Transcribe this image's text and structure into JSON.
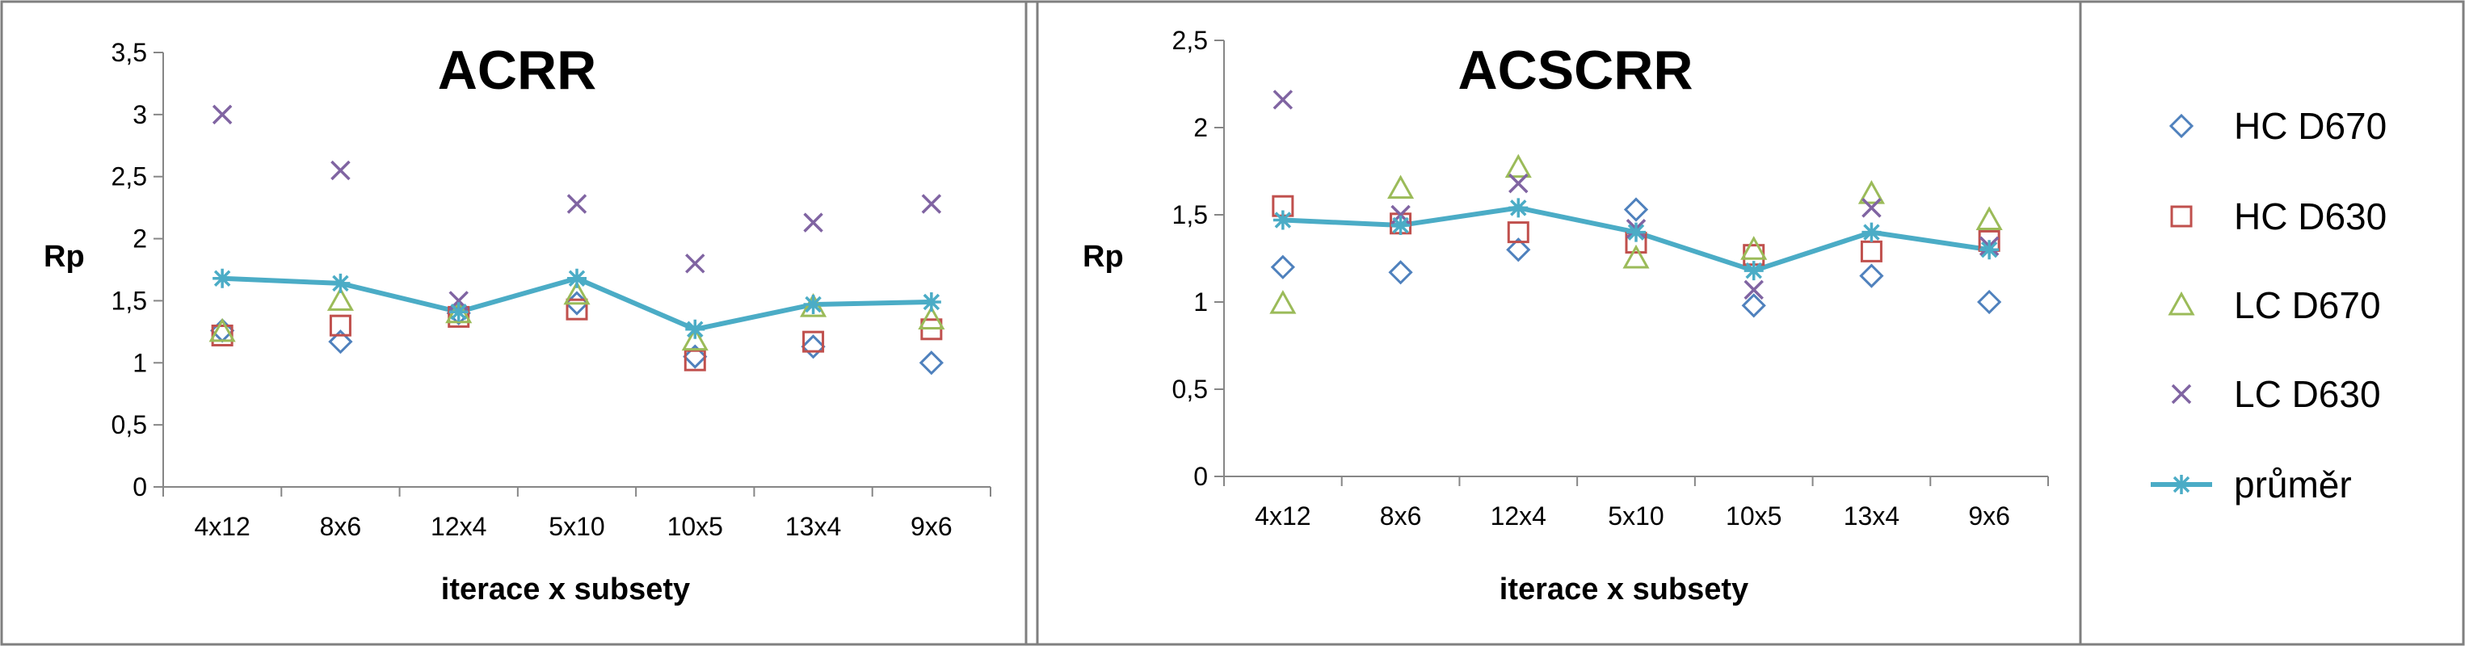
{
  "chart_data": [
    {
      "type": "scatter",
      "title": "ACRR",
      "xlabel": "iterace x subsety",
      "ylabel": "Rp",
      "categories": [
        "4x12",
        "8x6",
        "12x4",
        "5x10",
        "10x5",
        "13x4",
        "9x6"
      ],
      "ylim": [
        0,
        3.5
      ],
      "yticks": [
        "0",
        "0,5",
        "1",
        "1,5",
        "2",
        "2,5",
        "3",
        "3,5"
      ],
      "grid": false,
      "series": [
        {
          "name": "HC D670",
          "marker": "diamond",
          "color": "#4f81bd",
          "values": [
            1.26,
            1.17,
            1.4,
            1.48,
            1.05,
            1.13,
            1.0
          ]
        },
        {
          "name": "HC D630",
          "marker": "square",
          "color": "#c0504d",
          "values": [
            1.22,
            1.3,
            1.37,
            1.43,
            1.02,
            1.17,
            1.27
          ]
        },
        {
          "name": "LC D670",
          "marker": "triangle",
          "color": "#9bbb59",
          "values": [
            1.25,
            1.5,
            1.4,
            1.55,
            1.18,
            1.45,
            1.35
          ]
        },
        {
          "name": "LC D630",
          "marker": "x",
          "color": "#8064a2",
          "values": [
            3.0,
            2.55,
            1.5,
            2.28,
            1.8,
            2.13,
            2.28
          ]
        },
        {
          "name": "průměr",
          "marker": "star-line",
          "color": "#4bacc6",
          "values": [
            1.68,
            1.64,
            1.41,
            1.68,
            1.27,
            1.47,
            1.49
          ]
        }
      ]
    },
    {
      "type": "scatter",
      "title": "ACSCRR",
      "xlabel": "iterace x subsety",
      "ylabel": "Rp",
      "categories": [
        "4x12",
        "8x6",
        "12x4",
        "5x10",
        "10x5",
        "13x4",
        "9x6"
      ],
      "ylim": [
        0,
        2.5
      ],
      "yticks": [
        "0",
        "0,5",
        "1",
        "1,5",
        "2",
        "2,5"
      ],
      "grid": false,
      "legend": "right",
      "series": [
        {
          "name": "HC D670",
          "marker": "diamond",
          "color": "#4f81bd",
          "values": [
            1.2,
            1.17,
            1.3,
            1.53,
            0.98,
            1.15,
            1.0
          ]
        },
        {
          "name": "HC D630",
          "marker": "square",
          "color": "#c0504d",
          "values": [
            1.55,
            1.45,
            1.4,
            1.34,
            1.27,
            1.29,
            1.35
          ]
        },
        {
          "name": "LC D670",
          "marker": "triangle",
          "color": "#9bbb59",
          "values": [
            0.99,
            1.65,
            1.77,
            1.25,
            1.3,
            1.62,
            1.47
          ]
        },
        {
          "name": "LC D630",
          "marker": "x",
          "color": "#8064a2",
          "values": [
            2.16,
            1.5,
            1.68,
            1.42,
            1.07,
            1.54,
            1.32
          ]
        },
        {
          "name": "průměr",
          "marker": "star-line",
          "color": "#4bacc6",
          "values": [
            1.47,
            1.44,
            1.54,
            1.4,
            1.18,
            1.4,
            1.3
          ]
        }
      ]
    }
  ]
}
